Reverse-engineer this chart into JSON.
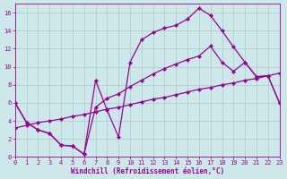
{
  "xlabel": "Windchill (Refroidissement éolien,°C)",
  "bg_color": "#cce8e8",
  "line_color": "#990099",
  "grid_color": "#aacccc",
  "xlim": [
    0,
    23
  ],
  "ylim": [
    0,
    17
  ],
  "xticks": [
    0,
    1,
    2,
    3,
    4,
    5,
    6,
    7,
    8,
    9,
    10,
    11,
    12,
    13,
    14,
    15,
    16,
    17,
    18,
    19,
    20,
    21,
    22,
    23
  ],
  "yticks": [
    0,
    2,
    4,
    6,
    8,
    10,
    12,
    14,
    16
  ],
  "line1_x": [
    0,
    1,
    2,
    3,
    4,
    5,
    6,
    7,
    8,
    9,
    10,
    11,
    12,
    13,
    14,
    15,
    16,
    17,
    18,
    19,
    20,
    21,
    22,
    23
  ],
  "line1_y": [
    6.0,
    3.8,
    3.0,
    2.6,
    1.3,
    1.2,
    0.3,
    8.5,
    5.2,
    2.2,
    10.5,
    13.0,
    13.8,
    14.3,
    14.6,
    15.3,
    16.5,
    15.7,
    14.0,
    12.2,
    10.5,
    8.9,
    9.0,
    6.0
  ],
  "line2_x": [
    0,
    1,
    2,
    3,
    4,
    5,
    6,
    7,
    8,
    9,
    10,
    11,
    12,
    13,
    14,
    15,
    16,
    17,
    18,
    19,
    20,
    21,
    22,
    23
  ],
  "line2_y": [
    6.0,
    3.8,
    3.0,
    2.6,
    1.3,
    1.2,
    0.3,
    5.5,
    6.5,
    7.0,
    7.8,
    8.5,
    9.2,
    9.8,
    10.3,
    10.8,
    11.2,
    12.3,
    10.5,
    9.5,
    10.5,
    8.9,
    9.0,
    6.0
  ],
  "line3_x": [
    0,
    1,
    2,
    3,
    4,
    5,
    6,
    7,
    8,
    9,
    10,
    11,
    12,
    13,
    14,
    15,
    16,
    17,
    18,
    19,
    20,
    21,
    22,
    23
  ],
  "line3_y": [
    3.2,
    3.5,
    3.8,
    4.0,
    4.2,
    4.5,
    4.7,
    5.0,
    5.3,
    5.5,
    5.8,
    6.1,
    6.4,
    6.6,
    6.9,
    7.2,
    7.5,
    7.7,
    8.0,
    8.2,
    8.5,
    8.7,
    9.0,
    9.3
  ],
  "marker": "D",
  "markersize": 2.2,
  "linewidth": 0.9,
  "tick_fontsize": 5.0,
  "xlabel_fontsize": 5.5
}
